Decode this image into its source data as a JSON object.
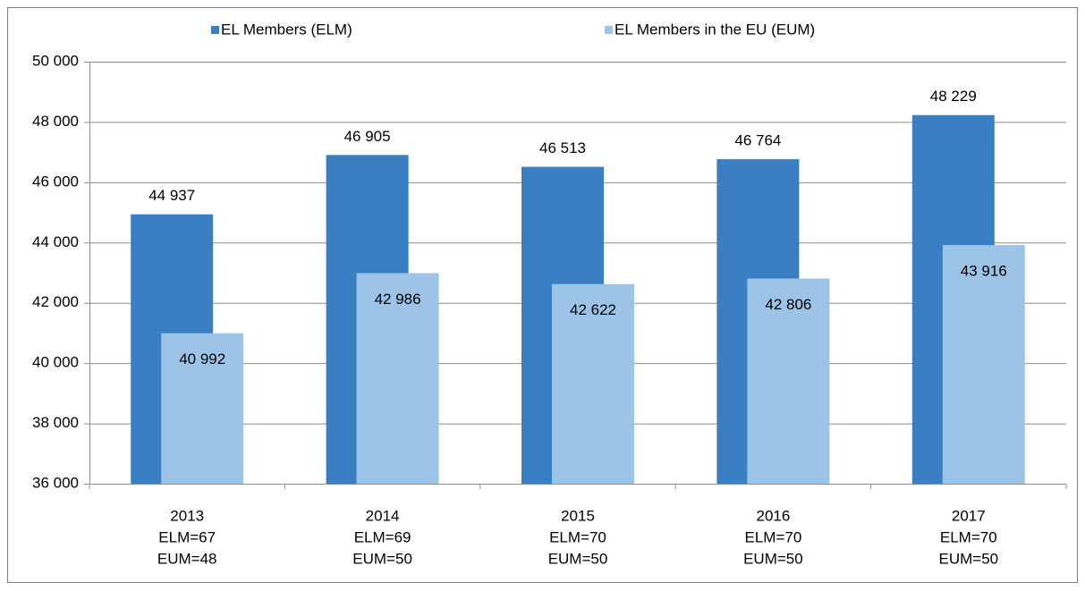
{
  "chart_data": {
    "type": "bar",
    "categories": [
      [
        "2013",
        "ELM=67",
        "EUM=48"
      ],
      [
        "2014",
        "ELM=69",
        "EUM=50"
      ],
      [
        "2015",
        "ELM=70",
        "EUM=50"
      ],
      [
        "2016",
        "ELM=70",
        "EUM=50"
      ],
      [
        "2017",
        "ELM=70",
        "EUM=50"
      ]
    ],
    "series": [
      {
        "name": "EL Members (ELM)",
        "color": "#3a7fc3",
        "values": [
          44937,
          46905,
          46513,
          46764,
          48229
        ],
        "value_labels": [
          "44 937",
          "46 905",
          "46 513",
          "46 764",
          "48 229"
        ]
      },
      {
        "name": "EL Members in the EU (EUM)",
        "color": "#9dc3e6",
        "values": [
          40992,
          42986,
          42622,
          42806,
          43916
        ],
        "value_labels": [
          "40 992",
          "42 986",
          "42 622",
          "42 806",
          "43 916"
        ]
      }
    ],
    "ylim": [
      36000,
      50000
    ],
    "yticks": [
      {
        "value": 36000,
        "label": "36 000"
      },
      {
        "value": 38000,
        "label": "38 000"
      },
      {
        "value": 40000,
        "label": "40 000"
      },
      {
        "value": 42000,
        "label": "42 000"
      },
      {
        "value": 44000,
        "label": "44 000"
      },
      {
        "value": 46000,
        "label": "46 000"
      },
      {
        "value": 48000,
        "label": "48 000"
      },
      {
        "value": 50000,
        "label": "50 000"
      }
    ],
    "grid": true,
    "legend": "top"
  }
}
